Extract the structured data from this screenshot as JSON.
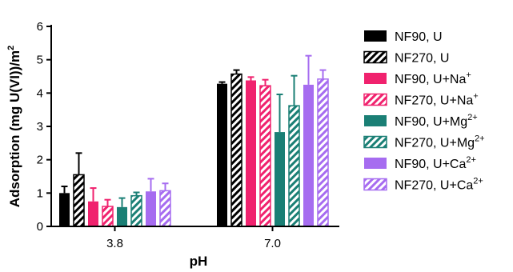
{
  "chart_data": {
    "type": "bar",
    "xlabel": "pH",
    "ylabel": "Adsorption  (mg U(VI))/m",
    "ylabel_sup": "2",
    "ylim": [
      0,
      6
    ],
    "yticks": [
      "0",
      "1",
      "2",
      "3",
      "4",
      "5",
      "6"
    ],
    "categories": [
      "3.8",
      "7.0"
    ],
    "series": [
      {
        "name": "NF90, U",
        "name_sup": "",
        "color": "#000000",
        "hatched": false,
        "values": [
          1.0,
          4.28
        ],
        "errors": [
          0.2,
          0.05
        ]
      },
      {
        "name": "NF270, U",
        "name_sup": "",
        "color": "#000000",
        "hatched": true,
        "values": [
          1.55,
          4.57
        ],
        "errors": [
          0.65,
          0.12
        ]
      },
      {
        "name": "NF90, U+Na",
        "name_sup": "+",
        "color": "#f0226e",
        "hatched": false,
        "values": [
          0.75,
          4.38
        ],
        "errors": [
          0.4,
          0.1
        ]
      },
      {
        "name": "NF270, U+Na",
        "name_sup": "+",
        "color": "#f0226e",
        "hatched": true,
        "values": [
          0.6,
          4.22
        ],
        "errors": [
          0.2,
          0.18
        ]
      },
      {
        "name": "NF90, U+Mg",
        "name_sup": "2+",
        "color": "#1a7f75",
        "hatched": false,
        "values": [
          0.58,
          2.83
        ],
        "errors": [
          0.27,
          1.13
        ]
      },
      {
        "name": "NF270, U+Mg",
        "name_sup": "2+",
        "color": "#1a7f75",
        "hatched": true,
        "values": [
          0.92,
          3.62
        ],
        "errors": [
          0.1,
          0.9
        ]
      },
      {
        "name": "NF90, U+Ca",
        "name_sup": "2+",
        "color": "#a66cf0",
        "hatched": false,
        "values": [
          1.05,
          4.25
        ],
        "errors": [
          0.38,
          0.87
        ]
      },
      {
        "name": "NF270, U+Ca",
        "name_sup": "2+",
        "color": "#a66cf0",
        "hatched": true,
        "values": [
          1.07,
          4.42
        ],
        "errors": [
          0.22,
          0.27
        ]
      }
    ]
  }
}
